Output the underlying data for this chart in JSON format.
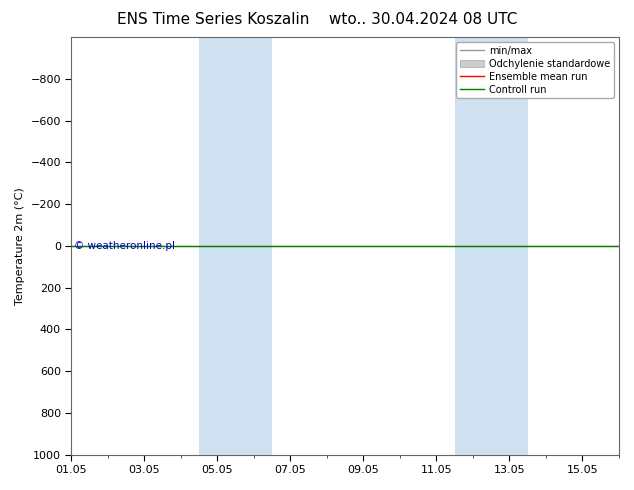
{
  "title": "ENS Time Series Koszalin",
  "subtitle": "wto.. 30.04.2024 08 UTC",
  "ylabel": "Temperature 2m (°C)",
  "ylim_top": -1000,
  "ylim_bottom": 1000,
  "yticks": [
    -800,
    -600,
    -400,
    -200,
    0,
    200,
    400,
    600,
    800,
    1000
  ],
  "xtick_labels": [
    "01.05",
    "03.05",
    "05.05",
    "07.05",
    "09.05",
    "11.05",
    "13.05",
    "15.05"
  ],
  "xtick_positions": [
    0,
    2,
    4,
    6,
    8,
    10,
    12,
    14
  ],
  "x_min": 0,
  "x_max": 15,
  "shaded_regions": [
    {
      "start": 3.5,
      "end": 5.5
    },
    {
      "start": 10.5,
      "end": 12.5
    }
  ],
  "shaded_color": "#cfe0f0",
  "control_run_y": 0.0,
  "ensemble_mean_y": 0.0,
  "line_color_control": "#008000",
  "line_color_ensemble": "#ff0000",
  "legend_minmax_color": "#999999",
  "legend_std_color": "#cccccc",
  "watermark_text": "© weatheronline.pl",
  "watermark_color": "#0000bb",
  "watermark_fontsize": 7.5,
  "background_color": "#ffffff",
  "plot_bg_color": "#ffffff",
  "title_fontsize": 11,
  "axis_fontsize": 8,
  "tick_fontsize": 8,
  "legend_fontsize": 7
}
